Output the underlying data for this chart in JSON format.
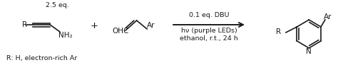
{
  "bg_color": "#ffffff",
  "fig_width": 4.74,
  "fig_height": 0.92,
  "dpi": 100,
  "text_color": "#1a1a1a",
  "font_size": 7.5,
  "small_font": 6.8,
  "eq_label": "2.5 eq.",
  "r_label": "R: H, electron-rich Ar",
  "condition1": "0.1 eq. DBU",
  "condition2": "hν (purple LEDs)",
  "condition3": "ethanol, r.t., 24 h"
}
